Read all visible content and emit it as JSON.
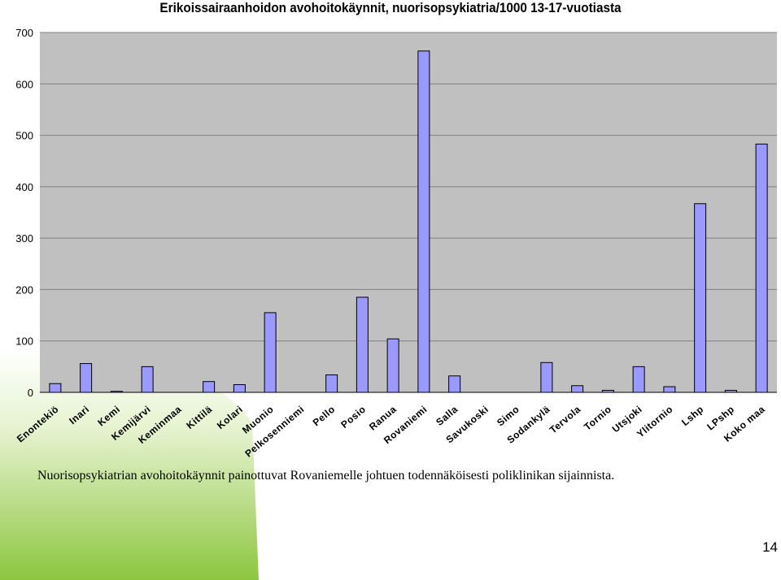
{
  "chart_data": {
    "type": "bar",
    "title": "Erikoissairaanhoidon avohoitokäynnit, nuorisopsykiatria/1000 13-17-vuotiasta",
    "xlabel": "",
    "ylabel": "",
    "ylim": [
      0,
      700
    ],
    "yticks": [
      0,
      100,
      200,
      300,
      400,
      500,
      600,
      700
    ],
    "grid": true,
    "categories": [
      "Enontekiö",
      "Inari",
      "Kemi",
      "Kemijärvi",
      "Keminmaa",
      "Kittilä",
      "Kolari",
      "Muonio",
      "Pelkosenniemi",
      "Pello",
      "Posio",
      "Ranua",
      "Rovaniemi",
      "Salla",
      "Savukoski",
      "Simo",
      "Sodankylä",
      "Tervola",
      "Tornio",
      "Utsjoki",
      "Ylitornio",
      "Lshp",
      "LPshp",
      "Koko maa"
    ],
    "values": [
      17,
      56,
      2,
      50,
      0,
      21,
      15,
      155,
      0,
      34,
      185,
      104,
      664,
      32,
      0,
      0,
      58,
      13,
      4,
      50,
      11,
      367,
      4,
      483
    ],
    "colors": {
      "plot_background": "#c0c0c0",
      "bar_fill": "#9999ff",
      "bar_stroke": "#000000",
      "gridline": "#808080"
    }
  },
  "caption": "Nuorisopsykiatrian avohoitokäynnit painottuvat Rovaniemelle johtuen todennäköisesti poliklinikan sijainnista.",
  "page_number": "14",
  "decoration": {
    "accent_color": "#8cc63f"
  }
}
